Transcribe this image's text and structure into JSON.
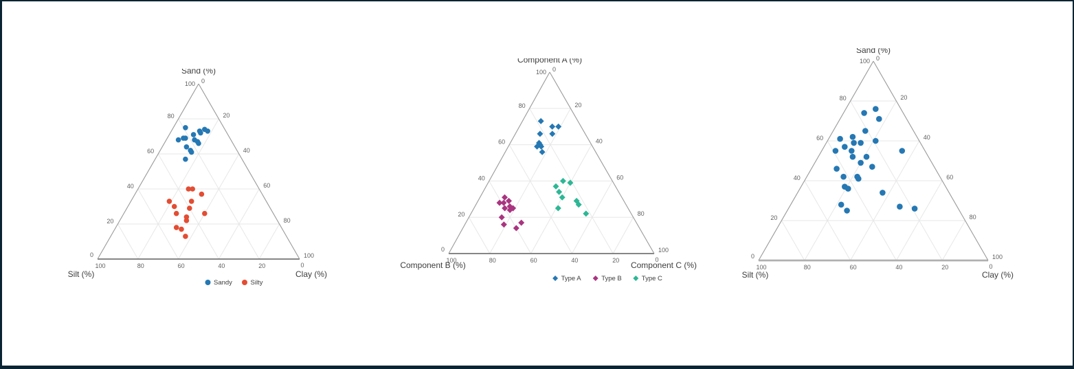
{
  "page": {
    "background": "#ffffff",
    "frame_color": "#0a2433"
  },
  "chart_data": [
    {
      "type": "scatter",
      "subtype": "ternary",
      "axis_titles": {
        "top": "Sand (%)",
        "left": "Silt (%)",
        "right": "Clay (%)"
      },
      "axis_range": [
        0,
        100
      ],
      "grid_step": 20,
      "tick_labels": {
        "left": [
          "100",
          "80",
          "60",
          "40",
          "20",
          "0"
        ],
        "right": [
          "0",
          "20",
          "40",
          "60",
          "80",
          "100"
        ],
        "bottom": [
          "100",
          "80",
          "60",
          "40",
          "20",
          "0"
        ]
      },
      "grid_on": true,
      "legend_position": "bottom-center",
      "show_legend": true,
      "series": [
        {
          "name": "Sandy",
          "color": "#2578b3",
          "marker": "circle",
          "points": [
            [
              75,
              19,
              6
            ],
            [
              73,
              13,
              14
            ],
            [
              72,
              13,
              15
            ],
            [
              74,
              10,
              16
            ],
            [
              73,
              9,
              18
            ],
            [
              71,
              17,
              12
            ],
            [
              68,
              26,
              6
            ],
            [
              69,
              23,
              8
            ],
            [
              69,
              22,
              9
            ],
            [
              68,
              18,
              14
            ],
            [
              67,
              17,
              16
            ],
            [
              66,
              17,
              17
            ],
            [
              64,
              24,
              12
            ],
            [
              62,
              23,
              15
            ],
            [
              61,
              23,
              16
            ],
            [
              57,
              28,
              15
            ]
          ]
        },
        {
          "name": "Silty",
          "color": "#e34d33",
          "marker": "circle",
          "points": [
            [
              40,
              35,
              25
            ],
            [
              40,
              33,
              27
            ],
            [
              37,
              30,
              33
            ],
            [
              33,
              48,
              19
            ],
            [
              33,
              37,
              30
            ],
            [
              30,
              47,
              23
            ],
            [
              29,
              40,
              31
            ],
            [
              26,
              48,
              26
            ],
            [
              26,
              34,
              40
            ],
            [
              24,
              44,
              32
            ],
            [
              22,
              45,
              33
            ],
            [
              18,
              52,
              30
            ],
            [
              17,
              50,
              33
            ],
            [
              13,
              50,
              37
            ]
          ]
        }
      ]
    },
    {
      "type": "scatter",
      "subtype": "ternary",
      "axis_titles": {
        "top": "Component A (%)",
        "left": "Component B (%)",
        "right": "Component C (%)"
      },
      "axis_range": [
        0,
        100
      ],
      "grid_step": 20,
      "tick_labels": {
        "left": [
          "100",
          "80",
          "60",
          "40",
          "20",
          "0"
        ],
        "right": [
          "0",
          "20",
          "40",
          "60",
          "80",
          "100"
        ],
        "bottom": [
          "100",
          "80",
          "60",
          "40",
          "20",
          "0"
        ]
      },
      "grid_on": true,
      "legend_position": "bottom-center",
      "show_legend": true,
      "series": [
        {
          "name": "Type A",
          "color": "#2578b3",
          "marker": "diamond",
          "points": [
            [
              73,
              18,
              9
            ],
            [
              70,
              14,
              16
            ],
            [
              70,
              11,
              19
            ],
            [
              66,
              22,
              12
            ],
            [
              66,
              16,
              18
            ],
            [
              61,
              25,
              14
            ],
            [
              60,
              25,
              15
            ],
            [
              59,
              27,
              14
            ],
            [
              59,
              25,
              16
            ],
            [
              56,
              26,
              18
            ]
          ]
        },
        {
          "name": "Type B",
          "color": "#a93580",
          "marker": "diamond",
          "points": [
            [
              31,
              57,
              12
            ],
            [
              28,
              61,
              11
            ],
            [
              28,
              59,
              13
            ],
            [
              29,
              56,
              15
            ],
            [
              26,
              57,
              17
            ],
            [
              25,
              60,
              15
            ],
            [
              24,
              58,
              18
            ],
            [
              25,
              56,
              19
            ],
            [
              20,
              64,
              16
            ],
            [
              17,
              56,
              27
            ],
            [
              16,
              65,
              19
            ],
            [
              14,
              60,
              26
            ]
          ]
        },
        {
          "name": "Type C",
          "color": "#2db795",
          "marker": "diamond",
          "points": [
            [
              40,
              24,
              36
            ],
            [
              39,
              21,
              40
            ],
            [
              37,
              29,
              34
            ],
            [
              34,
              29,
              37
            ],
            [
              31,
              29,
              40
            ],
            [
              29,
              23,
              48
            ],
            [
              27,
              23,
              50
            ],
            [
              25,
              34,
              41
            ],
            [
              22,
              22,
              56
            ]
          ]
        }
      ]
    },
    {
      "type": "scatter",
      "subtype": "ternary",
      "axis_titles": {
        "top": "Sand (%)",
        "left": "Silt (%)",
        "right": "Clay (%)"
      },
      "axis_range": [
        0,
        100
      ],
      "grid_step": 20,
      "tick_labels": {
        "left": [
          "100",
          "80",
          "60",
          "40",
          "20",
          "0"
        ],
        "right": [
          "0",
          "20",
          "40",
          "60",
          "80",
          "100"
        ],
        "bottom": [
          "100",
          "80",
          "60",
          "40",
          "20",
          "0"
        ]
      },
      "grid_on": true,
      "legend_position": "none",
      "show_legend": false,
      "series": [
        {
          "name": "",
          "color": "#2578b3",
          "marker": "circle",
          "points": [
            [
              74,
              17,
              9
            ],
            [
              76,
              11,
              13
            ],
            [
              71,
              12,
              17
            ],
            [
              65,
              21,
              14
            ],
            [
              61,
              34,
              5
            ],
            [
              62,
              28,
              10
            ],
            [
              59,
              29,
              12
            ],
            [
              59,
              26,
              15
            ],
            [
              60,
              19,
              21
            ],
            [
              57,
              34,
              9
            ],
            [
              55,
              39,
              6
            ],
            [
              55,
              32,
              13
            ],
            [
              55,
              10,
              35
            ],
            [
              52,
              33,
              15
            ],
            [
              52,
              27,
              21
            ],
            [
              49,
              31,
              20
            ],
            [
              47,
              27,
              26
            ],
            [
              46,
              43,
              11
            ],
            [
              42,
              42,
              16
            ],
            [
              42,
              36,
              22
            ],
            [
              41,
              36,
              23
            ],
            [
              37,
              44,
              19
            ],
            [
              36,
              43,
              21
            ],
            [
              34,
              29,
              37
            ],
            [
              28,
              50,
              22
            ],
            [
              27,
              25,
              48
            ],
            [
              26,
              19,
              55
            ],
            [
              25,
              49,
              26
            ]
          ]
        }
      ]
    }
  ]
}
